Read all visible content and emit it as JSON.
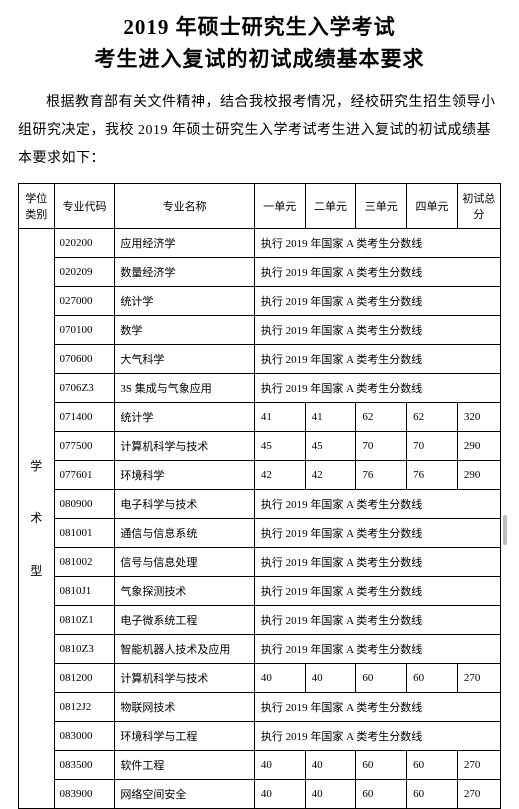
{
  "title_line1": "2019 年硕士研究生入学考试",
  "title_line2": "考生进入复试的初试成绩基本要求",
  "intro": "根据教育部有关文件精神，结合我校报考情况，经校研究生招生领导小组研究决定，我校 2019 年硕士研究生入学考试考生进入复试的初试成绩基本要求如下：",
  "headers": {
    "category": "学位类别",
    "code": "专业代码",
    "name": "专业名称",
    "u1": "一单元",
    "u2": "二单元",
    "u3": "三单元",
    "u4": "四单元",
    "total": "初试总分"
  },
  "category_label": "学\n术\n型",
  "note_text": "执行 2019 年国家 A 类考生分数线",
  "rows": [
    {
      "code": "020200",
      "name": "应用经济学",
      "merged": true
    },
    {
      "code": "020209",
      "name": "数量经济学",
      "merged": true
    },
    {
      "code": "027000",
      "name": "统计学",
      "merged": true
    },
    {
      "code": "070100",
      "name": "数学",
      "merged": true
    },
    {
      "code": "070600",
      "name": "大气科学",
      "merged": true
    },
    {
      "code": "0706Z3",
      "name": "3S 集成与气象应用",
      "merged": true
    },
    {
      "code": "071400",
      "name": "统计学",
      "u1": "41",
      "u2": "41",
      "u3": "62",
      "u4": "62",
      "total": "320"
    },
    {
      "code": "077500",
      "name": "计算机科学与技术",
      "u1": "45",
      "u2": "45",
      "u3": "70",
      "u4": "70",
      "total": "290"
    },
    {
      "code": "077601",
      "name": "环境科学",
      "u1": "42",
      "u2": "42",
      "u3": "76",
      "u4": "76",
      "total": "290"
    },
    {
      "code": "080900",
      "name": "电子科学与技术",
      "merged": true
    },
    {
      "code": "081001",
      "name": "通信与信息系统",
      "merged": true
    },
    {
      "code": "081002",
      "name": "信号与信息处理",
      "merged": true
    },
    {
      "code": "0810J1",
      "name": "气象探测技术",
      "merged": true
    },
    {
      "code": "0810Z1",
      "name": "电子微系统工程",
      "merged": true
    },
    {
      "code": "0810Z3",
      "name": "智能机器人技术及应用",
      "merged": true
    },
    {
      "code": "081200",
      "name": "计算机科学与技术",
      "u1": "40",
      "u2": "40",
      "u3": "60",
      "u4": "60",
      "total": "270"
    },
    {
      "code": "0812J2",
      "name": "物联网技术",
      "merged": true
    },
    {
      "code": "083000",
      "name": "环境科学与工程",
      "merged": true
    },
    {
      "code": "083500",
      "name": "软件工程",
      "u1": "40",
      "u2": "40",
      "u3": "60",
      "u4": "60",
      "total": "270"
    },
    {
      "code": "083900",
      "name": "网络空间安全",
      "u1": "40",
      "u2": "40",
      "u3": "60",
      "u4": "60",
      "total": "270"
    }
  ]
}
